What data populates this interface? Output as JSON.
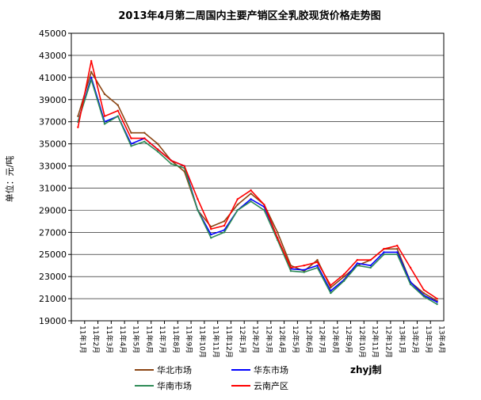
{
  "chart_data": {
    "type": "line",
    "title": "2013年4月第二周国内主要产销区全乳胶现货价格走势图",
    "ylabel": "单位：元/吨",
    "xlabel": "",
    "ylim": [
      19000,
      45000
    ],
    "yticks": [
      19000,
      21000,
      23000,
      25000,
      27000,
      29000,
      31000,
      33000,
      35000,
      37000,
      39000,
      41000,
      43000,
      45000
    ],
    "categories": [
      "11年1月",
      "11年2月",
      "11年3月",
      "11年4月",
      "11年5月",
      "11年6月",
      "11年7月",
      "11年8月",
      "11年9月",
      "11年10月",
      "11年11月",
      "11年12月",
      "12年1月",
      "12年2月",
      "12年3月",
      "12年4月",
      "12年5月",
      "12年6月",
      "12年7月",
      "12年8月",
      "12年9月",
      "12年10月",
      "12年11月",
      "12年12月",
      "13年1月",
      "13年2月",
      "13年3月",
      "13年4月"
    ],
    "grid": true,
    "legend_position": "bottom",
    "watermark": "zhyj制",
    "series": [
      {
        "name": "华北市场",
        "color": "#8B4513",
        "values": [
          37500,
          41500,
          39500,
          38500,
          36000,
          36000,
          35000,
          33500,
          32500,
          29000,
          27500,
          28000,
          29500,
          30500,
          29500,
          27000,
          24000,
          23500,
          24500,
          22000,
          23000,
          24000,
          24500,
          25500,
          25500,
          22500,
          21500,
          20800
        ]
      },
      {
        "name": "华东市场",
        "color": "#0000FF",
        "values": [
          37000,
          41000,
          37000,
          37500,
          35000,
          35500,
          34500,
          33500,
          33000,
          29000,
          26800,
          27200,
          29000,
          30000,
          29300,
          26500,
          23700,
          23600,
          24000,
          21700,
          22700,
          24200,
          24000,
          25200,
          25200,
          22500,
          21300,
          20700
        ]
      },
      {
        "name": "华南市场",
        "color": "#2E8B57",
        "values": [
          37000,
          40800,
          36800,
          37500,
          34800,
          35200,
          34300,
          33200,
          32800,
          29000,
          26500,
          27000,
          29000,
          29800,
          29000,
          26300,
          23500,
          23400,
          23800,
          21500,
          22600,
          24000,
          23800,
          25000,
          25000,
          22300,
          21200,
          20500
        ]
      },
      {
        "name": "云南产区",
        "color": "#FF0000",
        "values": [
          36500,
          42500,
          37500,
          38000,
          35500,
          35500,
          34500,
          33500,
          33000,
          30000,
          27300,
          27600,
          30000,
          30800,
          29500,
          26500,
          23800,
          24000,
          24300,
          22200,
          23200,
          24500,
          24500,
          25500,
          25800,
          23800,
          21800,
          21000
        ]
      }
    ]
  }
}
